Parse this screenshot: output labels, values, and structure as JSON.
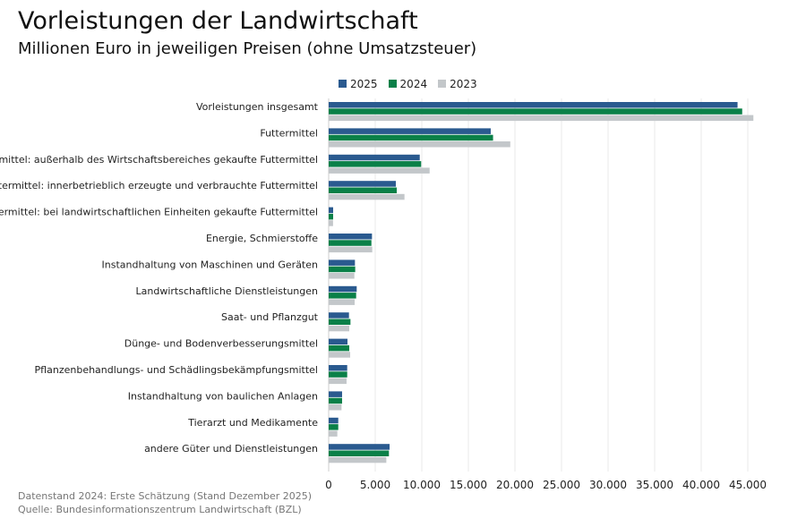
{
  "chart_data": {
    "type": "bar",
    "orientation": "horizontal",
    "title": "Vorleistungen der Landwirtschaft",
    "subtitle": "Millionen Euro in jeweiligen Preisen (ohne Umsatzsteuer)",
    "xlim": [
      0,
      47000
    ],
    "xticks": [
      0,
      5000,
      10000,
      15000,
      20000,
      25000,
      30000,
      35000,
      40000,
      45000
    ],
    "xtick_labels": [
      "0",
      "5.000",
      "10.000",
      "15.000",
      "20.000",
      "25.000",
      "30.000",
      "35.000",
      "40.000",
      "45.000"
    ],
    "grid": true,
    "legend_position": "top",
    "categories": [
      "Vorleistungen insgesamt",
      "Futtermittel",
      "Futtermittel: außerhalb des Wirtschaftsbereiches gekaufte Futtermittel",
      "Futtermittel: innerbetrieblich erzeugte und verbrauchte Futtermittel",
      "Futtermittel: bei landwirtschaftlichen Einheiten gekaufte Futtermittel",
      "Energie, Schmierstoffe",
      "Instandhaltung von Maschinen und Geräten",
      "Landwirtschaftliche Dienstleistungen",
      "Saat- und Pflanzgut",
      "Dünge- und Bodenverbesserungsmittel",
      "Pflanzenbehandlungs- und Schädlingsbekämpfungsmittel",
      "Instandhaltung von baulichen Anlagen",
      "Tierarzt und Medikamente",
      "andere Güter und Dienstleistungen"
    ],
    "series": [
      {
        "name": "2025",
        "color": "#2a5a8f",
        "values": [
          43900,
          17400,
          9780,
          7210,
          480,
          4650,
          2820,
          3010,
          2180,
          2020,
          1990,
          1440,
          1030,
          6540
        ]
      },
      {
        "name": "2024",
        "color": "#0a8048",
        "values": [
          44400,
          17650,
          9930,
          7310,
          480,
          4590,
          2850,
          2950,
          2340,
          2210,
          1990,
          1440,
          1030,
          6470
        ]
      },
      {
        "name": "2023",
        "color": "#c3c7ca",
        "values": [
          45600,
          19500,
          10840,
          8140,
          470,
          4680,
          2760,
          2790,
          2210,
          2310,
          1920,
          1380,
          930,
          6190
        ]
      }
    ]
  },
  "footer": {
    "line1": "Datenstand 2024: Erste Schätzung (Stand Dezember 2025)",
    "line2": "Quelle: Bundesinformationszentrum Landwirtschaft (BZL)"
  }
}
